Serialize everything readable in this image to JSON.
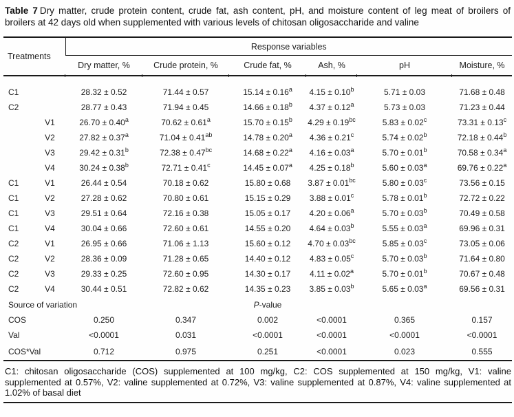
{
  "ink_color": "#1c1c1c",
  "rule_color": "#1a1a1a",
  "caption": {
    "label": "Table 7",
    "text": "Dry matter, crude protein content, crude fat, ash content, pH, and moisture content of leg meat of broilers of broilers at 42 days old when supplemented with various levels of chitosan oligosaccharide and valine"
  },
  "table": {
    "treatments_header": "Treatments",
    "response_header": "Response variables",
    "columns": [
      "Dry matter, %",
      "Crude protein, %",
      "Crude fat, %",
      "Ash, %",
      "pH",
      "Moisture, %"
    ],
    "rows": [
      {
        "c": "C1",
        "v": "",
        "cells": [
          "28.32 ± 0.52",
          "71.44 ± 0.57",
          "15.14 ± 0.16^a",
          "4.15 ± 0.10^b",
          "5.71 ± 0.03",
          "71.68 ± 0.48"
        ]
      },
      {
        "c": "C2",
        "v": "",
        "cells": [
          "28.77 ± 0.43",
          "71.94 ± 0.45",
          "14.66 ± 0.18^b",
          "4.37 ± 0.12^a",
          "5.73 ± 0.03",
          "71.23 ± 0.44"
        ]
      },
      {
        "c": "",
        "v": "V1",
        "cells": [
          "26.70 ± 0.40^a",
          "70.62 ± 0.61^a",
          "15.70 ± 0.15^b",
          "4.29 ± 0.19^bc",
          "5.83 ± 0.02^c",
          "73.31 ± 0.13^c"
        ]
      },
      {
        "c": "",
        "v": "V2",
        "cells": [
          "27.82 ± 0.37^a",
          "71.04 ± 0.41^ab",
          "14.78 ± 0.20^a",
          "4.36 ± 0.21^c",
          "5.74 ± 0.02^b",
          "72.18 ± 0.44^b"
        ]
      },
      {
        "c": "",
        "v": "V3",
        "cells": [
          "29.42 ± 0.31^b",
          "72.38 ± 0.47^bc",
          "14.68 ± 0.22^a",
          "4.16 ± 0.03^a",
          "5.70 ± 0.01^b",
          "70.58 ± 0.34^a"
        ]
      },
      {
        "c": "",
        "v": "V4",
        "cells": [
          "30.24 ± 0.38^b",
          "72.71 ± 0.41^c",
          "14.45 ± 0.07^a",
          "4.25 ± 0.18^b",
          "5.60 ± 0.03^a",
          "69.76 ± 0.22^a"
        ]
      },
      {
        "c": "C1",
        "v": "V1",
        "cells": [
          "26.44 ± 0.54",
          "70.18 ± 0.62",
          "15.80 ± 0.68",
          "3.87 ± 0.01^bc",
          "5.80 ± 0.03^c",
          "73.56 ± 0.15"
        ]
      },
      {
        "c": "C1",
        "v": "V2",
        "cells": [
          "27.28 ± 0.62",
          "70.80 ± 0.61",
          "15.15 ± 0.29",
          "3.88 ± 0.01^c",
          "5.78 ± 0.01^b",
          "72.72 ± 0.22"
        ]
      },
      {
        "c": "C1",
        "v": "V3",
        "cells": [
          "29.51 ± 0.64",
          "72.16 ± 0.38",
          "15.05 ± 0.17",
          "4.20 ± 0.06^a",
          "5.70 ± 0.03^b",
          "70.49 ± 0.58"
        ]
      },
      {
        "c": "C1",
        "v": "V4",
        "cells": [
          "30.04 ± 0.66",
          "72.60 ± 0.61",
          "14.55 ± 0.20",
          "4.64 ± 0.03^b",
          "5.55 ± 0.03^a",
          "69.96 ± 0.31"
        ]
      },
      {
        "c": "C2",
        "v": "V1",
        "cells": [
          "26.95 ± 0.66",
          "71.06 ± 1.13",
          "15.60 ± 0.12",
          "4.70 ± 0.03^bc",
          "5.85 ± 0.03^c",
          "73.05 ± 0.06"
        ]
      },
      {
        "c": "C2",
        "v": "V2",
        "cells": [
          "28.36 ± 0.09",
          "71.28 ± 0.65",
          "14.40 ± 0.12",
          "4.83 ± 0.05^c",
          "5.70 ± 0.03^b",
          "71.64 ± 0.80"
        ]
      },
      {
        "c": "C2",
        "v": "V3",
        "cells": [
          "29.33 ± 0.25",
          "72.60 ± 0.95",
          "14.30 ± 0.17",
          "4.11 ± 0.02^a",
          "5.70 ± 0.01^b",
          "70.67 ± 0.48"
        ]
      },
      {
        "c": "C2",
        "v": "V4",
        "cells": [
          "30.44 ± 0.51",
          "72.82 ± 0.62",
          "14.35 ± 0.23",
          "3.85 ± 0.03^b",
          "5.65 ± 0.03^a",
          "69.56 ± 0.31"
        ]
      }
    ],
    "sov": {
      "label": "Source of variation",
      "pvalue_italic": "P",
      "pvalue_rest": "-value"
    },
    "pvalue_rows": [
      {
        "label": "COS",
        "cells": [
          "0.250",
          "0.347",
          "0.002",
          "<0.0001",
          "0.365",
          "0.157"
        ]
      },
      {
        "label": "Val",
        "cells": [
          "<0.0001",
          "0.031",
          "<0.0001",
          "<0.0001",
          "<0.0001",
          "<0.0001"
        ]
      },
      {
        "label": "COS*Val",
        "cells": [
          "0.712",
          "0.975",
          "0.251",
          "<0.0001",
          "0.023",
          "0.555"
        ]
      }
    ]
  },
  "footnote": "C1: chitosan oligosaccharide (COS) supplemented at 100 mg/kg, C2: COS supplemented at 150 mg/kg, V1: valine supplemented at 0.57%, V2: valine supplemented at 0.72%, V3: valine supplemented at 0.87%, V4: valine supplemented at 1.02% of basal diet"
}
